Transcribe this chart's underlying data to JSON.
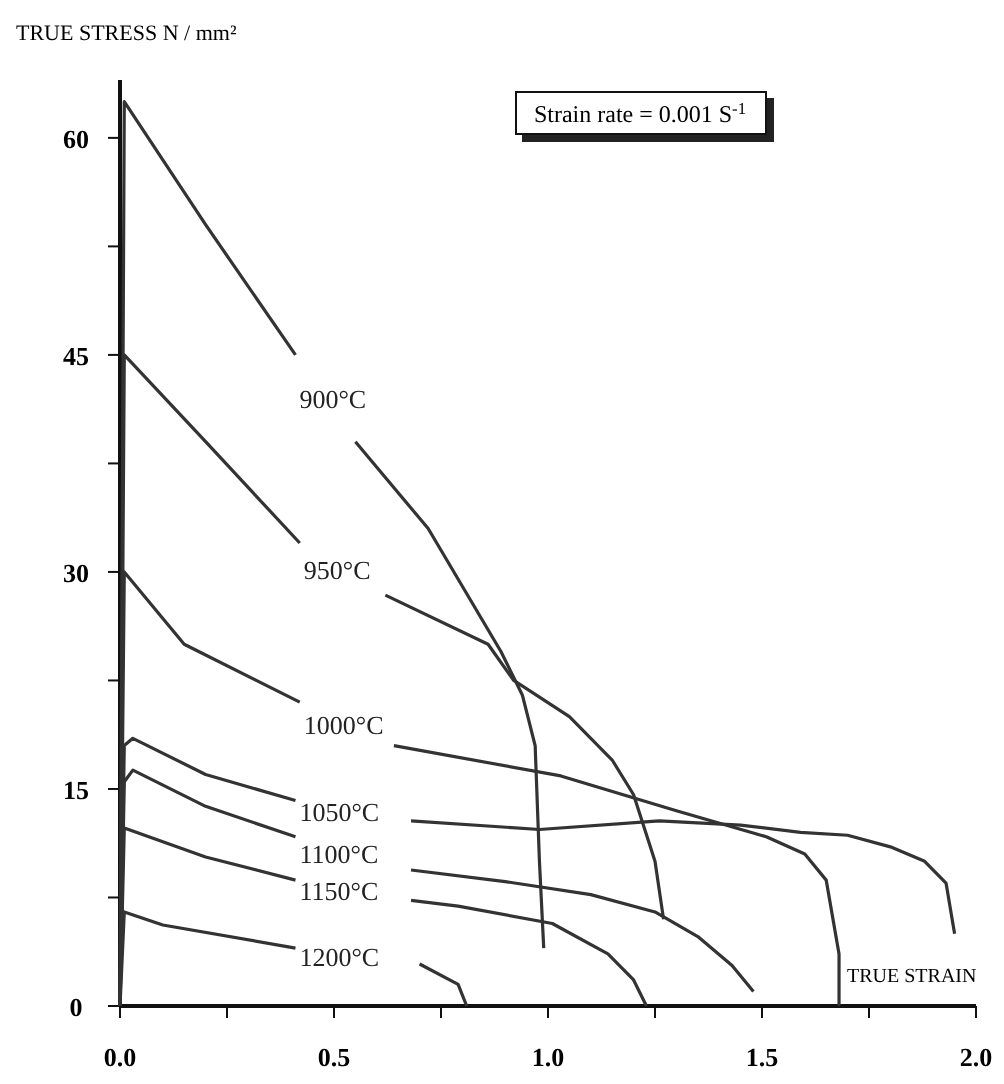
{
  "chart_data": {
    "type": "line",
    "ylabel": "TRUE STRESS N / mm²",
    "xlabel": "TRUE STRAIN",
    "annotations": [
      "Strain rate = 0.001 S$^{-1}$"
    ],
    "xlim": [
      0,
      2
    ],
    "ylim": [
      0,
      64
    ],
    "xticks": [
      {
        "value": 0,
        "label": "0.0"
      },
      {
        "value": 0.25,
        "label": null
      },
      {
        "value": 0.5,
        "label": "0.5"
      },
      {
        "value": 0.75,
        "label": null
      },
      {
        "value": 1,
        "label": "1.0"
      },
      {
        "value": 1.25,
        "label": null
      },
      {
        "value": 1.5,
        "label": "1.5"
      },
      {
        "value": 1.75,
        "label": null
      },
      {
        "value": 2,
        "label": "2.0"
      }
    ],
    "yticks": [
      0,
      {
        "value": 7.5,
        "label": null
      },
      15,
      {
        "value": 22.5,
        "label": null
      },
      30,
      {
        "value": 37.5,
        "label": null
      },
      45,
      {
        "value": 52.5,
        "label": null
      },
      60
    ],
    "marker": "none",
    "line_style": "solid",
    "series": [
      {
        "name": "900°C",
        "color": "#333333",
        "x": [
          0,
          0.01,
          0.2,
          0.41,
          0.48,
          0.55,
          0.72,
          0.89,
          0.94,
          0.97,
          0.98,
          0.99
        ],
        "values": [
          0,
          62.5,
          54,
          45,
          null,
          39,
          33,
          24.5,
          21.5,
          18,
          10,
          4
        ]
      },
      {
        "name": "950°C",
        "color": "#333333",
        "x": [
          0,
          0.01,
          0.2,
          0.42,
          0.52,
          0.62,
          0.86,
          0.92,
          1.05,
          1.15,
          1.2,
          1.25,
          1.27
        ],
        "values": [
          0,
          45,
          39,
          32,
          null,
          28.4,
          25,
          22.5,
          20,
          17,
          14.6,
          10,
          6
        ]
      },
      {
        "name": "1000°C",
        "color": "#333333",
        "x": [
          0,
          0.01,
          0.15,
          0.42,
          0.53,
          0.64,
          1.03,
          1.3,
          1.51,
          1.6,
          1.65,
          1.68,
          1.68
        ],
        "values": [
          0,
          30,
          25,
          21,
          null,
          18,
          15.9,
          13.5,
          11.7,
          10.5,
          8.7,
          3.6,
          0
        ]
      },
      {
        "name": "1050°C",
        "color": "#333333",
        "x": [
          0,
          0.01,
          0.03,
          0.2,
          0.41,
          0.55,
          0.68,
          0.98,
          1.26,
          1.45,
          1.59,
          1.7,
          1.8,
          1.88,
          1.93,
          1.95
        ],
        "values": [
          0,
          18,
          18.5,
          16,
          14.2,
          null,
          12.8,
          12.2,
          12.8,
          12.5,
          12,
          11.8,
          11,
          10,
          8.5,
          5
        ]
      },
      {
        "name": "1100°C",
        "color": "#333333",
        "x": [
          0,
          0.01,
          0.03,
          0.2,
          0.41,
          0.55,
          0.68,
          0.9,
          1.1,
          1.25,
          1.35,
          1.43,
          1.48
        ],
        "values": [
          0,
          15.5,
          16.3,
          13.8,
          11.7,
          null,
          9.4,
          8.6,
          7.7,
          6.5,
          4.8,
          2.8,
          1
        ]
      },
      {
        "name": "1150°C",
        "color": "#333333",
        "x": [
          0,
          0.01,
          0.2,
          0.41,
          0.55,
          0.68,
          0.79,
          1.01,
          1.14,
          1.2,
          1.23
        ],
        "values": [
          0,
          12.3,
          10.3,
          8.7,
          null,
          7.3,
          6.9,
          5.7,
          3.6,
          1.8,
          0
        ]
      },
      {
        "name": "1200°C",
        "color": "#333333",
        "x": [
          0,
          0.01,
          0.1,
          0.41,
          0.55,
          0.7,
          0.79,
          0.81
        ],
        "values": [
          0,
          6.5,
          5.6,
          4,
          null,
          2.9,
          1.5,
          0
        ]
      }
    ]
  }
}
